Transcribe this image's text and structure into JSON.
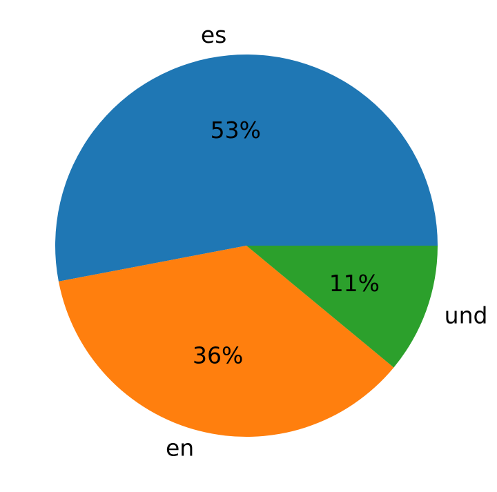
{
  "chart_data": {
    "type": "pie",
    "categories": [
      "es",
      "en",
      "und"
    ],
    "values": [
      53,
      36,
      11
    ],
    "value_labels": [
      "53%",
      "36%",
      "11%"
    ],
    "colors": [
      "#1f77b4",
      "#ff7f0e",
      "#2ca02c"
    ],
    "start_angle": 0
  }
}
